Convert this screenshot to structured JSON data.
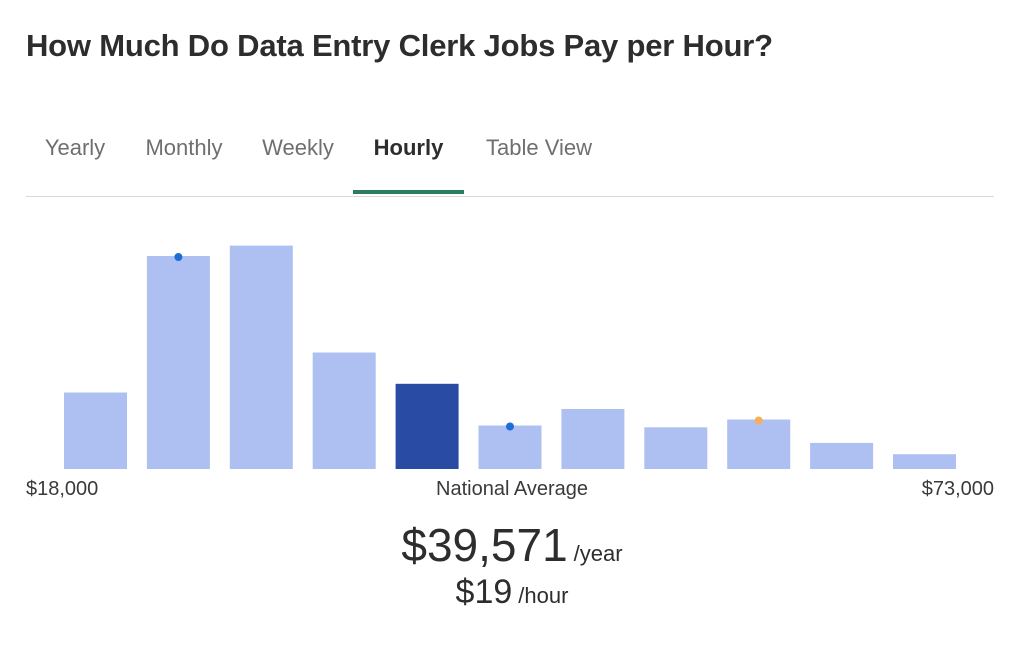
{
  "page_title": "How Much Do Data Entry Clerk Jobs Pay per Hour?",
  "tabs": [
    {
      "label": "Yearly",
      "active": false
    },
    {
      "label": "Monthly",
      "active": false
    },
    {
      "label": "Weekly",
      "active": false
    },
    {
      "label": "Hourly",
      "active": true
    },
    {
      "label": "Table View",
      "active": false
    }
  ],
  "colors": {
    "bar": "#aec0f1",
    "bar_highlight": "#2a4ba3",
    "tab_accent": "#2a7d5d",
    "marker_blue": "#1c6ed6",
    "marker_orange": "#f4ae5c"
  },
  "chart_data": {
    "type": "bar",
    "title": "",
    "xlabel": "",
    "ylabel": "",
    "x_min_label": "$18,000",
    "x_max_label": "$73,000",
    "center_label": "National Average",
    "values": [
      8.8,
      24.5,
      25.7,
      13.4,
      9.8,
      5.0,
      6.9,
      4.8,
      5.7,
      3.0,
      1.7
    ],
    "highlight_index": 4,
    "ylim": [
      0,
      26
    ],
    "markers": [
      {
        "bar_index": 1,
        "color": "marker_blue"
      },
      {
        "bar_index": 5,
        "color": "marker_blue"
      },
      {
        "bar_index": 8,
        "color": "marker_orange"
      }
    ]
  },
  "summary": {
    "yearly_value": "$39,571",
    "yearly_unit": "/year",
    "hourly_value": "$19",
    "hourly_unit": "/hour"
  }
}
